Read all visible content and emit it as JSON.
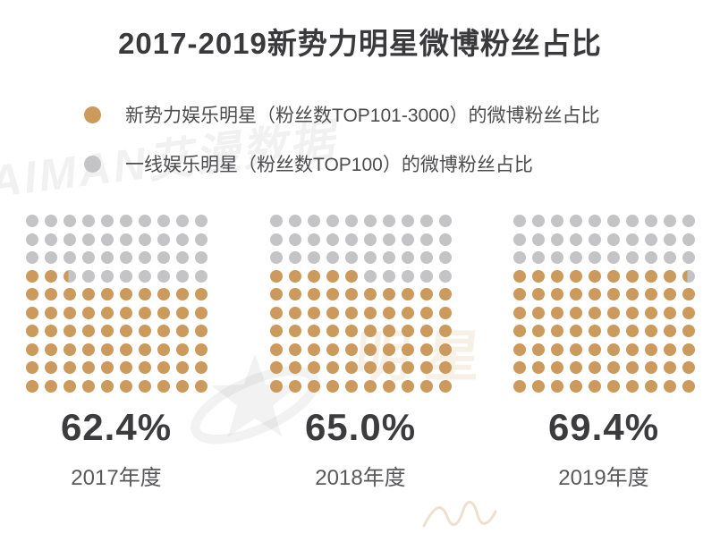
{
  "title": "2017-2019新势力明星微博粉丝占比",
  "legend": [
    {
      "name": "new-force-stars",
      "label": "新势力娱乐明星（粉丝数TOP101-3000）的微博粉丝占比",
      "color": "#CB9A5C"
    },
    {
      "name": "top100-stars",
      "label": "一线娱乐明星（粉丝数TOP100）的微博粉丝占比",
      "color": "#C4C4C6"
    }
  ],
  "chart_data": {
    "type": "waffle",
    "title": "2017-2019新势力明星微博粉丝占比",
    "grid": {
      "rows": 10,
      "cols": 10,
      "percent_per_dot": 1
    },
    "categories": [
      "2017年度",
      "2018年度",
      "2019年度"
    ],
    "values": [
      62.4,
      65.0,
      69.4
    ],
    "value_labels": [
      "62.4%",
      "65.0%",
      "69.4%"
    ],
    "series": [
      {
        "name": "新势力娱乐明星（粉丝数TOP101-3000）的微博粉丝占比",
        "role": "filled",
        "color": "#CB9A5C"
      },
      {
        "name": "一线娱乐明星（粉丝数TOP100）的微博粉丝占比",
        "role": "remainder",
        "color": "#C4C4C6"
      }
    ],
    "fill_direction": "bottom-up, partial row fills left-to-right",
    "legend_position": "top-left"
  },
  "watermarks": {
    "brand": "AIMAN艾漫数据",
    "star_logo": "star-orbit-logo",
    "faint_text": "明星"
  },
  "colors": {
    "gold": "#CB9A5C",
    "gray": "#C4C4C6",
    "title": "#3A3A3C",
    "percent": "#3C3C3E",
    "year": "#59595B",
    "background": "#FFFFFF"
  }
}
